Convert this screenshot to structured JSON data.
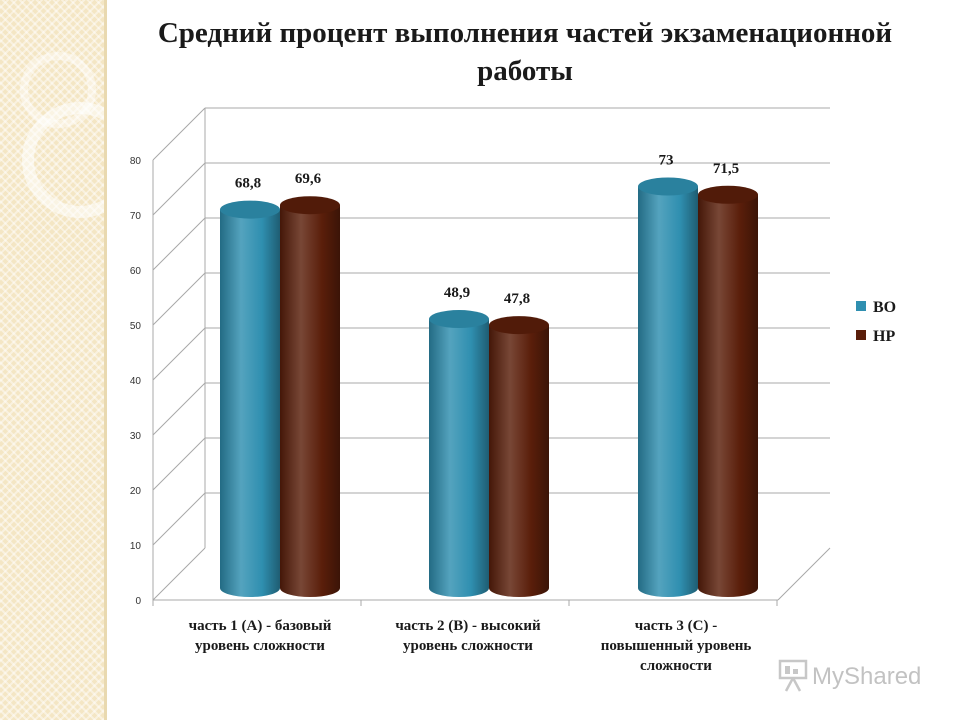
{
  "slide": {
    "title": "Средний процент выполнения частей экзаменационной работы"
  },
  "watermark": {
    "text": "MyShared"
  },
  "colors": {
    "series_1": "#2f8fb0",
    "series_2": "#5a1e0a",
    "gridline": "#a8a8a8",
    "background_strip": "#f4e6c4"
  },
  "chart_data": {
    "type": "bar",
    "style": "3d-cylinder",
    "title": "Средний процент выполнения частей экзаменационной работы",
    "categories": [
      "часть 1 (А) - базовый уровень сложности",
      "часть 2 (В) - высокий уровень сложности",
      "часть 3 (С) - повышенный уровень сложности"
    ],
    "series": [
      {
        "name": "ВО",
        "values": [
          68.8,
          48.9,
          73
        ],
        "labels": [
          "68,8",
          "48,9",
          "73"
        ]
      },
      {
        "name": "НР",
        "values": [
          69.6,
          47.8,
          71.5
        ],
        "labels": [
          "69,6",
          "47,8",
          "71,5"
        ]
      }
    ],
    "ylim": [
      0,
      80
    ],
    "yticks": [
      0,
      10,
      20,
      30,
      40,
      50,
      60,
      70,
      80
    ],
    "grid": true,
    "legend": "right"
  }
}
